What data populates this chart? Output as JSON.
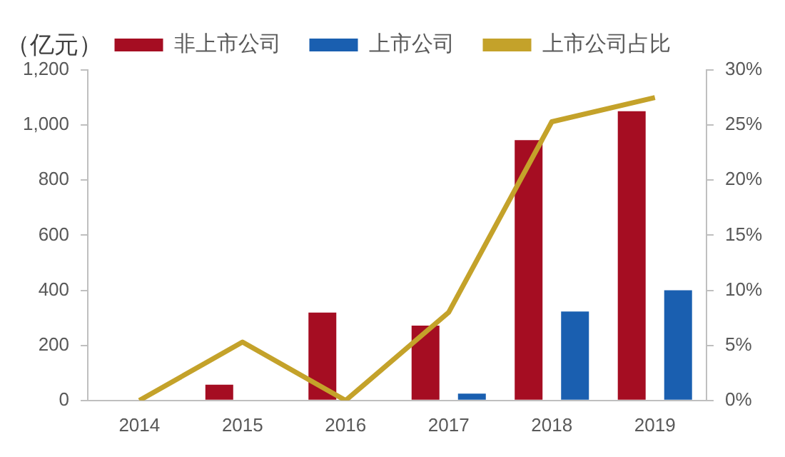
{
  "chart_data": {
    "type": "bar",
    "ylabel": "（亿元）",
    "categories": [
      "2014",
      "2015",
      "2016",
      "2017",
      "2018",
      "2019"
    ],
    "series": [
      {
        "name": "非上市公司",
        "color": "#a50d22",
        "values": [
          0,
          57,
          319,
          272,
          945,
          1050
        ]
      },
      {
        "name": "上市公司",
        "color": "#1a5fb0",
        "values": [
          0,
          0,
          0,
          25,
          323,
          400
        ]
      },
      {
        "name": "上市公司占比",
        "type": "line",
        "axis": "y2",
        "color": "#c4a22a",
        "values": [
          0,
          5.3,
          0,
          8.0,
          25.3,
          27.5
        ]
      }
    ],
    "ylim": [
      0,
      1200
    ],
    "yticks": [
      0,
      {
        "value": 200,
        "label": "200"
      },
      {
        "value": 400,
        "label": "400"
      },
      {
        "value": 600,
        "label": "600"
      },
      {
        "value": 800,
        "label": "800"
      },
      {
        "value": 1000,
        "label": "1,000"
      },
      {
        "value": 1200,
        "label": "1,200"
      }
    ],
    "y2lim": [
      0,
      30
    ],
    "y2ticks": [
      {
        "value": 0,
        "label": "0%"
      },
      {
        "value": 5,
        "label": "5%"
      },
      {
        "value": 10,
        "label": "10%"
      },
      {
        "value": 15,
        "label": "15%"
      },
      {
        "value": 20,
        "label": "20%"
      },
      {
        "value": 25,
        "label": "25%"
      },
      {
        "value": 30,
        "label": "30%"
      }
    ],
    "grid": false,
    "legend": "top",
    "marker": "none"
  }
}
